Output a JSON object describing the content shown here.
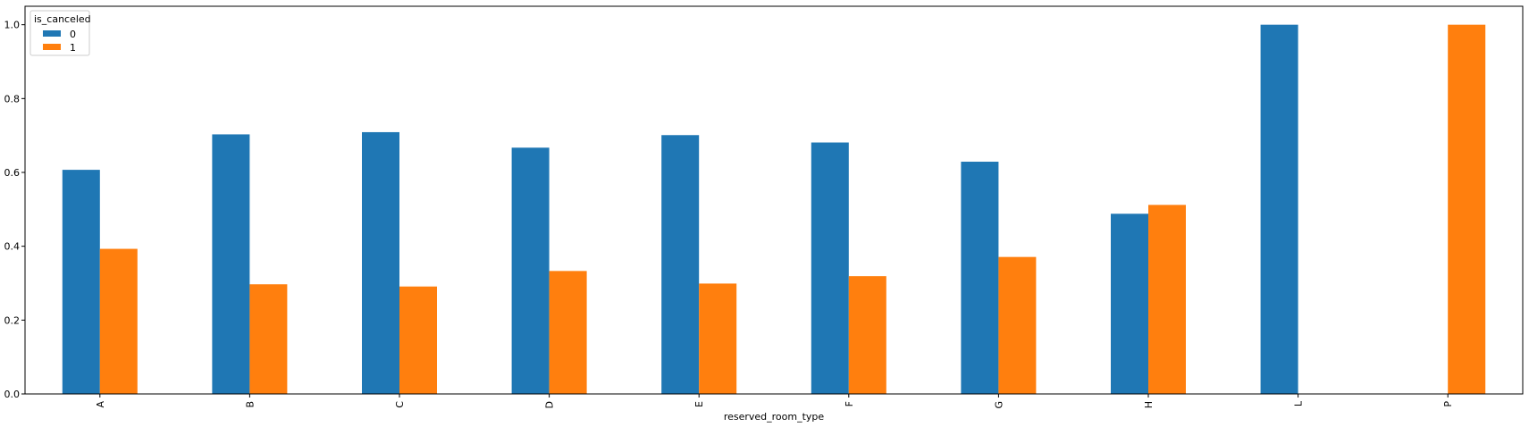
{
  "chart_data": {
    "type": "bar",
    "categories": [
      "A",
      "B",
      "C",
      "D",
      "E",
      "F",
      "G",
      "H",
      "L",
      "P"
    ],
    "series": [
      {
        "name": "0",
        "color": "#1f77b4",
        "values": [
          0.607,
          0.703,
          0.709,
          0.667,
          0.701,
          0.681,
          0.629,
          0.488,
          1.0,
          0.0
        ]
      },
      {
        "name": "1",
        "color": "#ff7f0e",
        "values": [
          0.393,
          0.297,
          0.291,
          0.333,
          0.299,
          0.319,
          0.371,
          0.512,
          0.0,
          1.0
        ]
      }
    ],
    "xlabel": "reserved_room_type",
    "ylabel": "",
    "ylim": [
      0,
      1.05
    ],
    "yticks": [
      0.0,
      0.2,
      0.4,
      0.6,
      0.8,
      1.0
    ],
    "ytick_labels": [
      "0.0",
      "0.2",
      "0.4",
      "0.6",
      "0.8",
      "1.0"
    ],
    "legend": {
      "title": "is_canceled",
      "placement": "top-left"
    },
    "grid": false
  }
}
